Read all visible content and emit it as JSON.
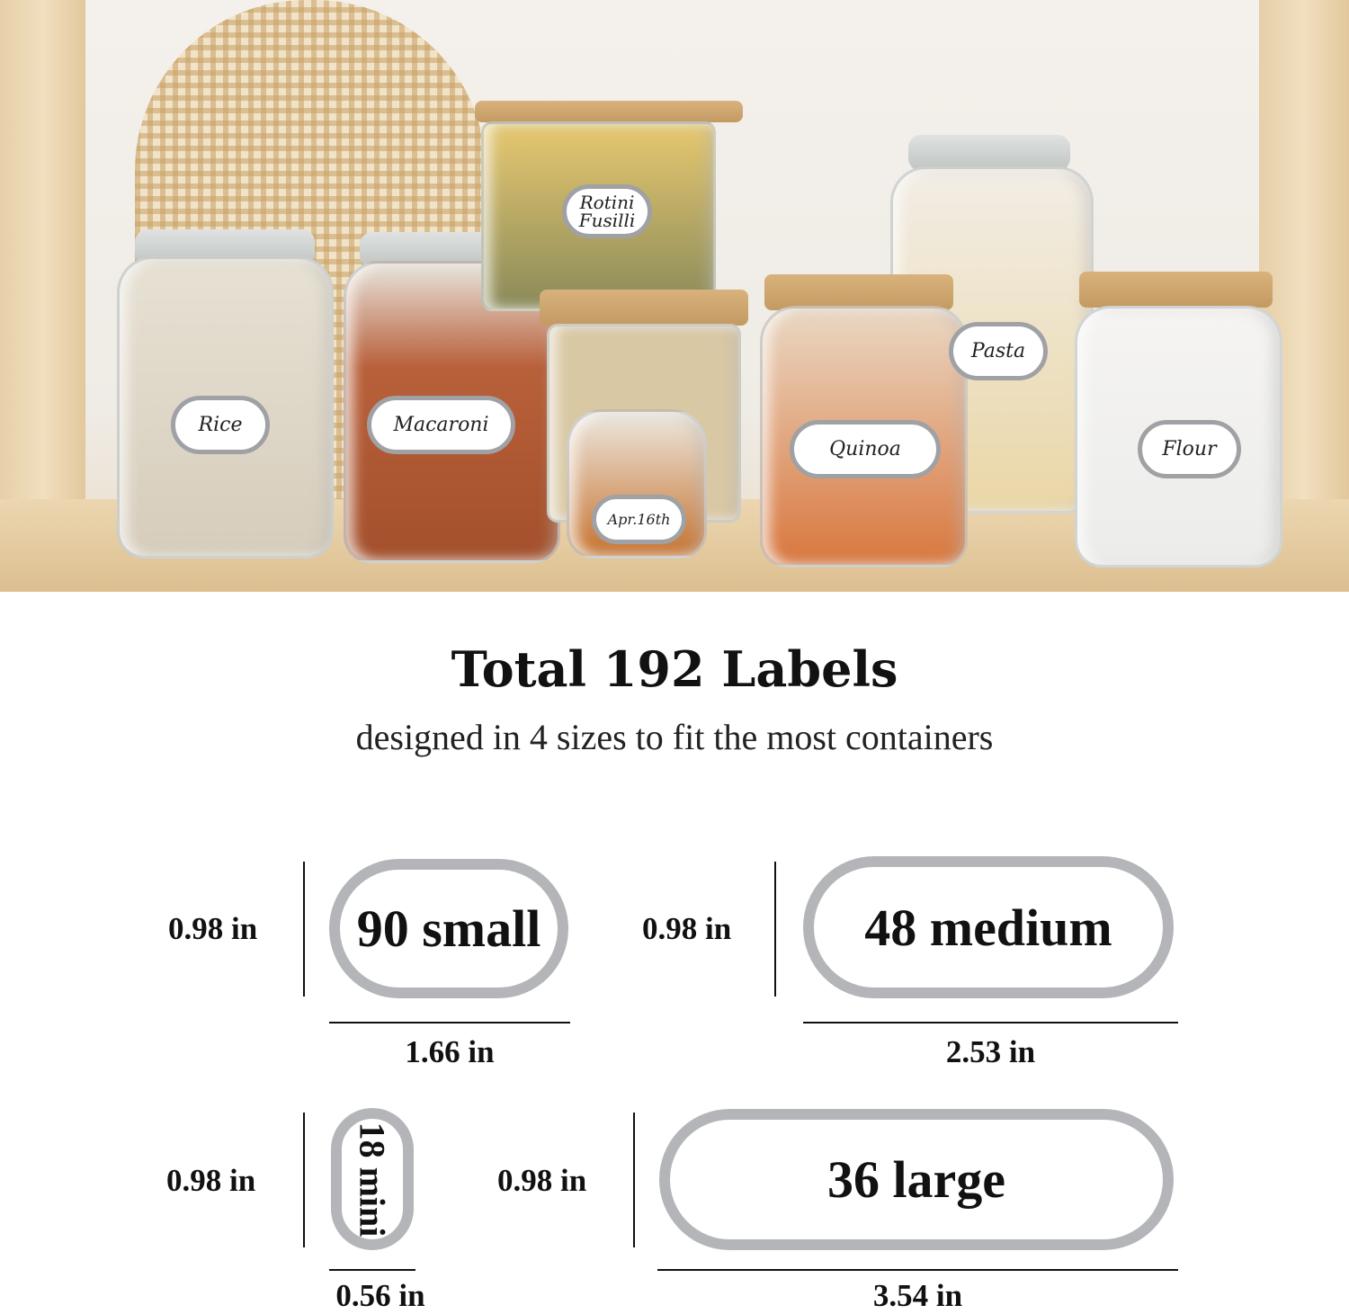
{
  "photo": {
    "jar_labels": [
      "Rice",
      "Macaroni",
      "Rotini Fusilli",
      "Apr.16th",
      "Quinoa",
      "Pasta",
      "Flour"
    ]
  },
  "headline": "Total 192 Labels",
  "subheadline": "designed in 4 sizes to fit the most containers",
  "sizes": [
    {
      "label": "90 small",
      "height": "0.98 in",
      "width": "1.66 in"
    },
    {
      "label": "48 medium",
      "height": "0.98 in",
      "width": "2.53 in"
    },
    {
      "label": "18 mini",
      "height": "0.98 in",
      "width": "0.56 in"
    },
    {
      "label": "36 large",
      "height": "0.98 in",
      "width": "3.54 in"
    }
  ],
  "colors": {
    "label_border": "#b4b5b8",
    "text": "#111111"
  }
}
